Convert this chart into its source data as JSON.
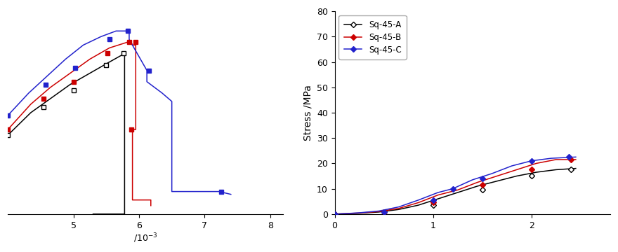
{
  "left": {
    "xlim": [
      4.0,
      8.2
    ],
    "ylim": [
      0,
      72
    ],
    "xticks": [
      5,
      6,
      7,
      8
    ],
    "black_x": [
      4.0,
      4.35,
      4.65,
      4.95,
      5.25,
      5.55,
      5.78,
      5.78,
      5.3
    ],
    "black_y": [
      28,
      36,
      41,
      46,
      50,
      54,
      57,
      0,
      0
    ],
    "black_mx": [
      4.0,
      4.55,
      5.0,
      5.5,
      5.77
    ],
    "black_my": [
      28,
      38,
      44,
      53,
      57
    ],
    "red_x": [
      4.0,
      4.35,
      4.65,
      4.95,
      5.25,
      5.55,
      5.82,
      5.88,
      5.9,
      5.95,
      5.95,
      5.9,
      5.9,
      6.18,
      6.18
    ],
    "red_y": [
      30,
      39,
      45,
      50,
      55,
      59,
      61,
      61,
      60,
      60,
      30,
      30,
      5,
      5,
      3
    ],
    "red_mx": [
      4.0,
      4.55,
      5.0,
      5.52,
      5.85,
      5.95,
      5.88
    ],
    "red_my": [
      30,
      41,
      47,
      57,
      61,
      61,
      30
    ],
    "blue_x": [
      4.0,
      4.32,
      4.6,
      4.88,
      5.15,
      5.42,
      5.65,
      5.82,
      5.85,
      5.85,
      6.12,
      6.12,
      6.35,
      6.5,
      6.5,
      7.22,
      7.22,
      7.4
    ],
    "blue_y": [
      35,
      43,
      49,
      55,
      60,
      63,
      65,
      65,
      65,
      62,
      51,
      47,
      43,
      40,
      8,
      8,
      8,
      7
    ],
    "blue_mx": [
      4.0,
      4.58,
      5.03,
      5.55,
      5.83,
      6.15,
      7.25
    ],
    "blue_my": [
      35,
      46,
      52,
      62,
      65,
      51,
      8
    ],
    "xlabel": "/10^{-3}"
  },
  "right": {
    "xlim": [
      0,
      2.8
    ],
    "ylim": [
      0,
      80
    ],
    "xticks": [
      0,
      1,
      2
    ],
    "yticks": [
      0,
      10,
      20,
      30,
      40,
      50,
      60,
      70,
      80
    ],
    "black_x": [
      0,
      0.1,
      0.25,
      0.45,
      0.65,
      0.85,
      1.05,
      1.25,
      1.45,
      1.65,
      1.85,
      2.05,
      2.25,
      2.45
    ],
    "black_y": [
      0,
      0.1,
      0.3,
      0.8,
      1.8,
      3.5,
      6.0,
      8.5,
      11.0,
      13.0,
      15.0,
      16.5,
      17.5,
      18.0
    ],
    "black_mx": [
      0.0,
      0.5,
      1.0,
      1.5,
      2.0,
      2.4
    ],
    "black_my": [
      0,
      0.7,
      3.5,
      9.5,
      15.0,
      17.5
    ],
    "red_x": [
      0,
      0.1,
      0.25,
      0.45,
      0.65,
      0.85,
      1.05,
      1.25,
      1.45,
      1.65,
      1.85,
      2.05,
      2.25,
      2.45
    ],
    "red_y": [
      0,
      0.15,
      0.4,
      1.0,
      2.2,
      4.5,
      7.5,
      9.5,
      12.5,
      15.0,
      17.5,
      20.0,
      21.5,
      21.5
    ],
    "red_mx": [
      0.0,
      0.5,
      1.0,
      1.5,
      2.0,
      2.4
    ],
    "red_my": [
      0,
      0.8,
      4.5,
      11.5,
      17.5,
      21.5
    ],
    "blue_x": [
      0,
      0.1,
      0.25,
      0.45,
      0.65,
      0.85,
      1.05,
      1.2,
      1.4,
      1.6,
      1.8,
      2.0,
      2.2,
      2.45
    ],
    "blue_y": [
      0,
      0.15,
      0.5,
      1.2,
      2.8,
      5.5,
      8.5,
      10.0,
      13.5,
      16.0,
      19.0,
      21.0,
      22.0,
      22.5
    ],
    "blue_mx": [
      0.0,
      0.5,
      1.0,
      1.2,
      1.5,
      2.0,
      2.38
    ],
    "blue_my": [
      0,
      0.9,
      5.5,
      10.0,
      14.0,
      21.0,
      22.5
    ],
    "ylabel": "Stress /MPa"
  },
  "legend_labels": [
    "Sq-45-A",
    "Sq-45-B",
    "Sq-45-C"
  ],
  "colors": [
    "#000000",
    "#cc0000",
    "#2222cc"
  ],
  "black_color": "#000000",
  "red_color": "#cc0000",
  "blue_color": "#2222cc"
}
